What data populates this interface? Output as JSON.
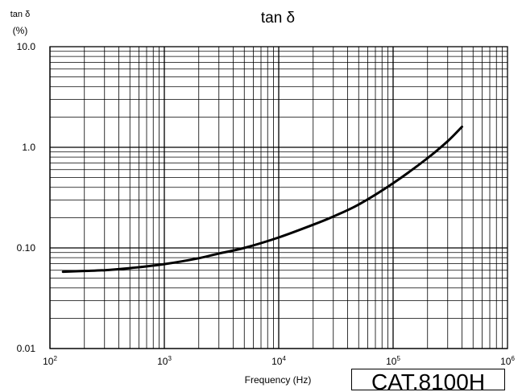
{
  "chart_data": {
    "type": "line",
    "title": "tan δ",
    "ylabel": "tan δ",
    "ylabel_unit": "(%)",
    "xlabel": "Frequency (Hz)",
    "x_scale": "log",
    "y_scale": "log",
    "xlim": [
      100,
      1000000
    ],
    "ylim": [
      0.01,
      10.0
    ],
    "x_ticks": [
      {
        "value": 100,
        "base": "10",
        "exp": "2"
      },
      {
        "value": 1000,
        "base": "10",
        "exp": "3"
      },
      {
        "value": 10000,
        "base": "10",
        "exp": "4"
      },
      {
        "value": 100000,
        "base": "10",
        "exp": "5"
      },
      {
        "value": 1000000,
        "base": "10",
        "exp": "6"
      }
    ],
    "y_ticks": [
      {
        "value": 10.0,
        "label": "10.0"
      },
      {
        "value": 1.0,
        "label": "1.0"
      },
      {
        "value": 0.1,
        "label": "0.10"
      },
      {
        "value": 0.01,
        "label": "0.01"
      }
    ],
    "grid": true,
    "series": [
      {
        "color": "#000000",
        "x": [
          130,
          200,
          300,
          500,
          1000,
          2000,
          3000,
          5000,
          10000,
          20000,
          30000,
          50000,
          100000,
          200000,
          300000,
          400000
        ],
        "y": [
          0.058,
          0.059,
          0.06,
          0.063,
          0.069,
          0.079,
          0.088,
          0.1,
          0.127,
          0.17,
          0.205,
          0.27,
          0.44,
          0.78,
          1.15,
          1.6
        ]
      }
    ]
  },
  "catalog_code": "CAT.8100H"
}
